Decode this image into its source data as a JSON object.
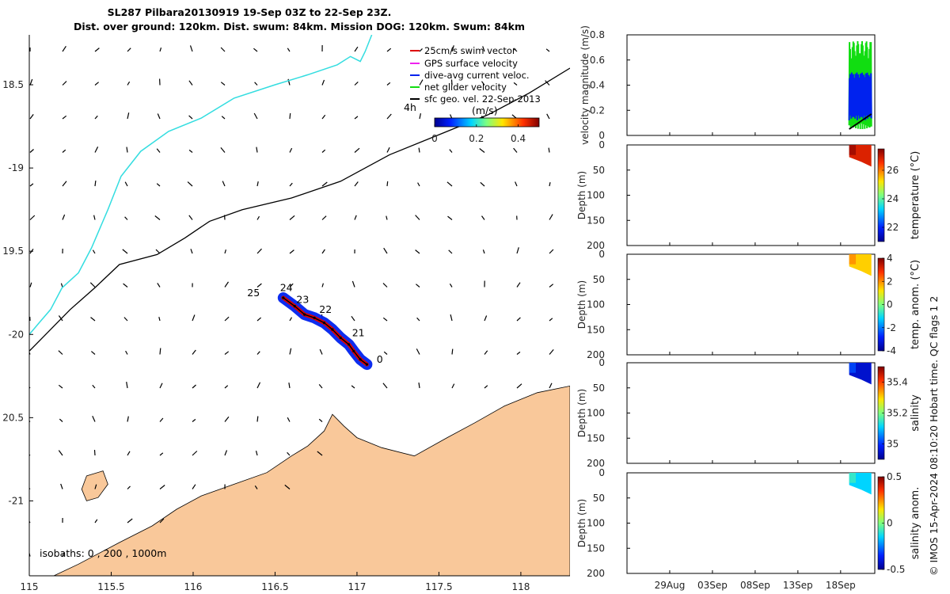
{
  "title": {
    "line1": "SL287 Pilbara20130919 19-Sep 03Z to 22-Sep 23Z.",
    "line2": "Dist. over ground: 120km. Dist. swum: 84km. Mission DOG: 120km. Swum: 84km"
  },
  "footer_stamp": "© IMOS 15-Apr-2024 08:10:20 Hobart time. QC flags 1 2",
  "colors": {
    "land": "#F9C89A",
    "coast_cyan": "#33DDE0",
    "isobath": "#000000",
    "swim_vector": "#DD0000",
    "gps_velocity": "#EE22EE",
    "dive_avg": "#0022EE",
    "net_glider": "#11DD11",
    "sfc_geo": "#000000"
  },
  "chart_data": [
    {
      "type": "map",
      "name": "glider track map",
      "xlim": [
        115,
        118.3
      ],
      "ylim": [
        -21.45,
        -18.2
      ],
      "x_ticks": [
        115,
        115.5,
        116,
        116.5,
        117,
        117.5,
        118
      ],
      "x_tick_labels": [
        "115",
        "115.5",
        "116",
        "116.5",
        "117",
        "117.5",
        "118"
      ],
      "y_ticks": [
        -18.5,
        -19,
        -19.5,
        -20,
        -20.5,
        -21
      ],
      "y_tick_labels": [
        "18.5",
        "-19",
        "19.5",
        "-20",
        "20.5",
        "-21"
      ],
      "legend": {
        "entries": [
          {
            "label": "25cm/s swim vector",
            "color_key": "swim_vector"
          },
          {
            "label": "GPS surface velocity",
            "color_key": "gps_velocity"
          },
          {
            "label": "dive-avg current veloc.",
            "color_key": "dive_avg"
          },
          {
            "label": "net glider velocity",
            "color_key": "net_glider"
          },
          {
            "label": "sfc geo. vel. 22-Sep-2013",
            "color_key": "sfc_geo"
          }
        ],
        "placement": "top-right"
      },
      "colorbar": {
        "label": "(m/s)",
        "range": [
          0,
          0.5
        ],
        "ticks": [
          0,
          0.2,
          0.4
        ],
        "tick_labels": [
          "0",
          "0.2",
          "0.4"
        ],
        "tick_note": "4h"
      },
      "isobath_note": "isobaths: 0 , 200 , 1000m",
      "track": [
        {
          "lon": 116.55,
          "lat": -19.78
        },
        {
          "lon": 116.62,
          "lat": -19.83
        },
        {
          "lon": 116.68,
          "lat": -19.88
        },
        {
          "lon": 116.74,
          "lat": -19.9
        },
        {
          "lon": 116.8,
          "lat": -19.93
        },
        {
          "lon": 116.85,
          "lat": -19.97
        },
        {
          "lon": 116.9,
          "lat": -20.02
        },
        {
          "lon": 116.95,
          "lat": -20.06
        },
        {
          "lon": 116.98,
          "lat": -20.1
        },
        {
          "lon": 117.02,
          "lat": -20.15
        },
        {
          "lon": 117.06,
          "lat": -20.18
        }
      ],
      "day_labels": [
        {
          "text": "25",
          "lon": 116.33,
          "lat": -19.77
        },
        {
          "text": "24",
          "lon": 116.53,
          "lat": -19.74
        },
        {
          "text": "23",
          "lon": 116.63,
          "lat": -19.81
        },
        {
          "text": "22",
          "lon": 116.77,
          "lat": -19.87
        },
        {
          "text": "21",
          "lon": 116.97,
          "lat": -20.01
        },
        {
          "text": "0",
          "lon": 117.12,
          "lat": -20.17
        }
      ],
      "cyan_contour": [
        {
          "lon": 115.0,
          "lat": -20.0
        },
        {
          "lon": 115.06,
          "lat": -19.93
        },
        {
          "lon": 115.13,
          "lat": -19.85
        },
        {
          "lon": 115.2,
          "lat": -19.72
        },
        {
          "lon": 115.3,
          "lat": -19.63
        },
        {
          "lon": 115.38,
          "lat": -19.48
        },
        {
          "lon": 115.48,
          "lat": -19.25
        },
        {
          "lon": 115.56,
          "lat": -19.05
        },
        {
          "lon": 115.68,
          "lat": -18.9
        },
        {
          "lon": 115.85,
          "lat": -18.78
        },
        {
          "lon": 116.05,
          "lat": -18.7
        },
        {
          "lon": 116.25,
          "lat": -18.58
        },
        {
          "lon": 116.5,
          "lat": -18.5
        },
        {
          "lon": 116.7,
          "lat": -18.44
        },
        {
          "lon": 116.88,
          "lat": -18.38
        },
        {
          "lon": 116.96,
          "lat": -18.33
        },
        {
          "lon": 117.02,
          "lat": -18.36
        },
        {
          "lon": 117.05,
          "lat": -18.3
        },
        {
          "lon": 117.09,
          "lat": -18.2
        }
      ],
      "isobath_contour": [
        {
          "lon": 115.0,
          "lat": -20.1
        },
        {
          "lon": 115.1,
          "lat": -20.0
        },
        {
          "lon": 115.25,
          "lat": -19.85
        },
        {
          "lon": 115.4,
          "lat": -19.72
        },
        {
          "lon": 115.55,
          "lat": -19.58
        },
        {
          "lon": 115.78,
          "lat": -19.52
        },
        {
          "lon": 115.95,
          "lat": -19.42
        },
        {
          "lon": 116.1,
          "lat": -19.32
        },
        {
          "lon": 116.3,
          "lat": -19.25
        },
        {
          "lon": 116.6,
          "lat": -19.18
        },
        {
          "lon": 116.9,
          "lat": -19.08
        },
        {
          "lon": 117.2,
          "lat": -18.92
        },
        {
          "lon": 117.5,
          "lat": -18.8
        },
        {
          "lon": 117.8,
          "lat": -18.68
        },
        {
          "lon": 118.05,
          "lat": -18.55
        },
        {
          "lon": 118.3,
          "lat": -18.4
        }
      ],
      "land_polygon": [
        {
          "lon": 115.0,
          "lat": -21.45
        },
        {
          "lon": 115.15,
          "lat": -21.45
        },
        {
          "lon": 115.3,
          "lat": -21.38
        },
        {
          "lon": 115.55,
          "lat": -21.25
        },
        {
          "lon": 115.75,
          "lat": -21.15
        },
        {
          "lon": 115.9,
          "lat": -21.05
        },
        {
          "lon": 116.05,
          "lat": -20.97
        },
        {
          "lon": 116.25,
          "lat": -20.9
        },
        {
          "lon": 116.45,
          "lat": -20.83
        },
        {
          "lon": 116.6,
          "lat": -20.73
        },
        {
          "lon": 116.7,
          "lat": -20.67
        },
        {
          "lon": 116.8,
          "lat": -20.58
        },
        {
          "lon": 116.85,
          "lat": -20.48
        },
        {
          "lon": 116.92,
          "lat": -20.55
        },
        {
          "lon": 117.0,
          "lat": -20.62
        },
        {
          "lon": 117.15,
          "lat": -20.68
        },
        {
          "lon": 117.35,
          "lat": -20.73
        },
        {
          "lon": 117.55,
          "lat": -20.62
        },
        {
          "lon": 117.72,
          "lat": -20.53
        },
        {
          "lon": 117.9,
          "lat": -20.43
        },
        {
          "lon": 118.1,
          "lat": -20.35
        },
        {
          "lon": 118.3,
          "lat": -20.31
        },
        {
          "lon": 118.3,
          "lat": -21.45
        }
      ],
      "island": [
        {
          "lon": 115.35,
          "lat": -20.85
        },
        {
          "lon": 115.45,
          "lat": -20.82
        },
        {
          "lon": 115.48,
          "lat": -20.9
        },
        {
          "lon": 115.42,
          "lat": -20.98
        },
        {
          "lon": 115.35,
          "lat": -21.0
        },
        {
          "lon": 115.32,
          "lat": -20.93
        }
      ]
    },
    {
      "type": "line",
      "name": "velocity magnitude",
      "ylabel": "velocity magnitude (m/s)",
      "ylim": [
        0,
        0.8
      ],
      "y_ticks": [
        0,
        0.2,
        0.4,
        0.6,
        0.8
      ],
      "y_tick_labels": [
        "0",
        "0.2",
        "0.4",
        "0.6",
        "0.8"
      ],
      "xlim_days": [
        0,
        29
      ]
    },
    {
      "type": "heatmap",
      "name": "temperature",
      "ylabel": "Depth (m)",
      "ylim": [
        200,
        0
      ],
      "y_ticks": [
        0,
        50,
        100,
        150,
        200
      ],
      "y_tick_labels": [
        "0",
        "50",
        "100",
        "150",
        "200"
      ],
      "colorbar_label": "temperature (°C)",
      "colorbar_range": [
        21,
        27.5
      ],
      "colorbar_ticks": [
        22,
        24,
        26
      ],
      "colorbar_tick_labels": [
        "22",
        "24",
        "26"
      ],
      "depth_max": 40,
      "color_value": 26.8
    },
    {
      "type": "heatmap",
      "name": "temperature anomaly",
      "ylabel": "Depth (m)",
      "ylim": [
        200,
        0
      ],
      "y_ticks": [
        0,
        50,
        100,
        150,
        200
      ],
      "y_tick_labels": [
        "0",
        "50",
        "100",
        "150",
        "200"
      ],
      "colorbar_label": "temp. anom. (°C)",
      "colorbar_range": [
        -4,
        4
      ],
      "colorbar_ticks": [
        -4,
        -2,
        0,
        2,
        4
      ],
      "colorbar_tick_labels": [
        "-4",
        "-2",
        "0",
        "2",
        "4"
      ],
      "depth_max": 40,
      "color_value": 1.4
    },
    {
      "type": "heatmap",
      "name": "salinity",
      "ylabel": "Depth (m)",
      "ylim": [
        200,
        0
      ],
      "y_ticks": [
        0,
        50,
        100,
        150,
        200
      ],
      "y_tick_labels": [
        "0",
        "50",
        "100",
        "150",
        "200"
      ],
      "colorbar_label": "salinity",
      "colorbar_range": [
        34.9,
        35.5
      ],
      "colorbar_ticks": [
        35,
        35.2,
        35.4
      ],
      "colorbar_tick_labels": [
        "35",
        "35.2",
        "35.4"
      ],
      "depth_max": 40,
      "color_value": 34.95
    },
    {
      "type": "heatmap",
      "name": "salinity anomaly",
      "ylabel": "Depth (m)",
      "ylim": [
        200,
        0
      ],
      "y_ticks": [
        0,
        50,
        100,
        150,
        200
      ],
      "y_tick_labels": [
        "0",
        "50",
        "100",
        "150",
        "200"
      ],
      "colorbar_label": "salinity anom.",
      "colorbar_range": [
        -0.5,
        0.5
      ],
      "colorbar_ticks": [
        -0.5,
        0,
        0.5
      ],
      "colorbar_tick_labels": [
        "-0.5",
        "0",
        "0.5"
      ],
      "depth_max": 40,
      "color_value": -0.15,
      "x_ticks_days": [
        5,
        10,
        15,
        20,
        25
      ],
      "x_tick_labels": [
        "29Aug",
        "03Sep",
        "08Sep",
        "13Sep",
        "18Sep"
      ]
    }
  ]
}
